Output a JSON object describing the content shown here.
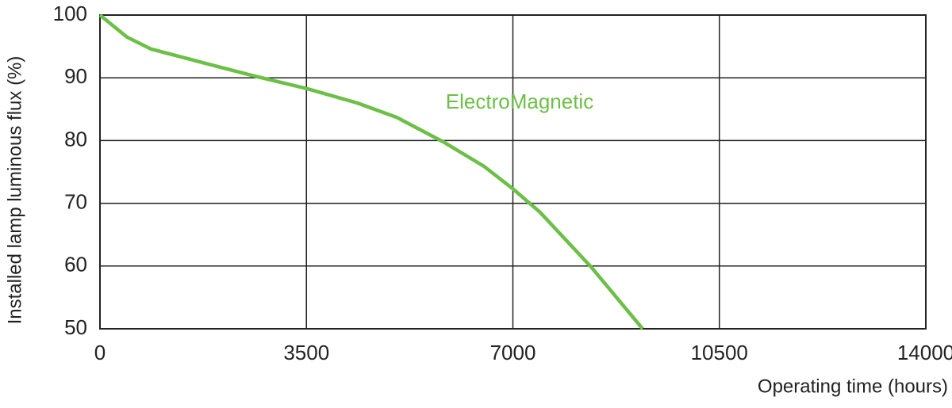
{
  "chart_data": {
    "type": "line",
    "xlabel": "Operating time (hours)",
    "ylabel": "Installed lamp luminous flux  (%)",
    "x": [
      0,
      457,
      861,
      1668,
      2609,
      3500,
      4357,
      5030,
      5837,
      6509,
      7000,
      7457,
      8331,
      9199
    ],
    "series": [
      {
        "name": "ElectroMagnetic",
        "color": "#6cbf47",
        "values": [
          100,
          96.5,
          94.6,
          92.6,
          90.3,
          88.3,
          86.0,
          83.7,
          79.7,
          75.9,
          72.3,
          68.6,
          59.8,
          50
        ]
      }
    ],
    "xlim": [
      0,
      14000
    ],
    "xticks": [
      0,
      3500,
      7000,
      10500,
      14000
    ],
    "ylim": [
      50,
      100
    ],
    "yticks": [
      50,
      60,
      70,
      80,
      90,
      100
    ],
    "grid": true
  }
}
